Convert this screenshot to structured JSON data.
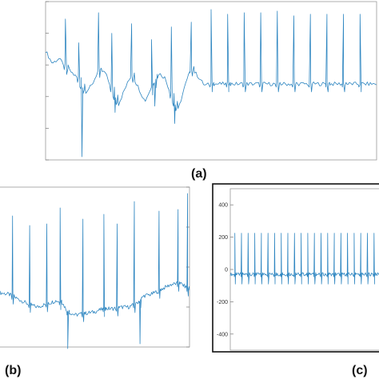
{
  "panel_labels": {
    "a": "(a)",
    "b": "(b)",
    "c": "(c)"
  },
  "colors": {
    "signal": "#2e86c1",
    "frame": "#999999",
    "panel_c_border": "#111111",
    "background": "#ffffff"
  },
  "chart_data": [
    {
      "type": "line",
      "panel": "(a)",
      "title": "",
      "xlabel": "",
      "ylabel": "",
      "x_range": [
        0,
        100
      ],
      "y_range": [
        -100,
        100
      ],
      "grid": false,
      "description_of_series": "ECG with motion artifacts in first half, regular QRS spikes in second half",
      "series": [
        {
          "baseline_points": [
            [
              0,
              38
            ],
            [
              2,
              22
            ],
            [
              4,
              28
            ],
            [
              6,
              18
            ],
            [
              8,
              10
            ],
            [
              10,
              2
            ],
            [
              12,
              -14
            ],
            [
              14,
              -6
            ],
            [
              16,
              14
            ],
            [
              18,
              10
            ],
            [
              20,
              -10
            ],
            [
              22,
              -30
            ],
            [
              24,
              -10
            ],
            [
              26,
              8
            ],
            [
              28,
              -8
            ],
            [
              30,
              -26
            ],
            [
              32,
              -8
            ],
            [
              34,
              10
            ],
            [
              36,
              4
            ],
            [
              38,
              -18
            ],
            [
              40,
              -38
            ],
            [
              42,
              -8
            ],
            [
              44,
              16
            ],
            [
              46,
              6
            ],
            [
              48,
              -6
            ],
            [
              50,
              -4
            ],
            [
              55,
              -4
            ],
            [
              60,
              -4
            ],
            [
              65,
              -4
            ],
            [
              70,
              -4
            ],
            [
              75,
              -4
            ],
            [
              80,
              -4
            ],
            [
              85,
              -4
            ],
            [
              90,
              -4
            ],
            [
              95,
              -4
            ],
            [
              100,
              -4
            ]
          ],
          "r_peaks": [
            [
              6,
              78
            ],
            [
              10,
              48
            ],
            [
              16,
              86
            ],
            [
              20,
              60
            ],
            [
              26,
              72
            ],
            [
              32,
              52
            ],
            [
              38,
              68
            ],
            [
              44,
              74
            ],
            [
              50,
              90
            ],
            [
              55,
              84
            ],
            [
              60,
              86
            ],
            [
              65,
              86
            ],
            [
              70,
              88
            ],
            [
              75,
              82
            ],
            [
              80,
              84
            ],
            [
              85,
              84
            ],
            [
              90,
              84
            ],
            [
              95,
              84
            ]
          ],
          "deep_dips": [
            [
              11,
              -96
            ],
            [
              21,
              -40
            ],
            [
              33,
              -32
            ],
            [
              39,
              -54
            ]
          ]
        }
      ]
    },
    {
      "type": "line",
      "panel": "(b)",
      "title": "",
      "xlabel": "",
      "ylabel": "",
      "x_range": [
        0,
        100
      ],
      "y_range": [
        -100,
        100
      ],
      "grid": false,
      "series": [
        {
          "baseline_points": [
            [
              0,
              -32
            ],
            [
              5,
              -34
            ],
            [
              10,
              -40
            ],
            [
              15,
              -46
            ],
            [
              20,
              -50
            ],
            [
              25,
              -46
            ],
            [
              30,
              -42
            ],
            [
              33,
              -44
            ],
            [
              36,
              -56
            ],
            [
              40,
              -60
            ],
            [
              45,
              -58
            ],
            [
              50,
              -56
            ],
            [
              55,
              -52
            ],
            [
              60,
              -52
            ],
            [
              65,
              -50
            ],
            [
              68,
              -50
            ],
            [
              72,
              -46
            ],
            [
              76,
              -36
            ],
            [
              80,
              -34
            ],
            [
              85,
              -28
            ],
            [
              90,
              -22
            ],
            [
              95,
              -20
            ],
            [
              100,
              -28
            ]
          ],
          "r_peaks": [
            [
              7,
              64
            ],
            [
              16,
              52
            ],
            [
              25,
              54
            ],
            [
              32,
              74
            ],
            [
              44,
              60
            ],
            [
              55,
              66
            ],
            [
              62,
              54
            ],
            [
              71,
              82
            ],
            [
              84,
              70
            ],
            [
              94,
              72
            ],
            [
              99,
              92
            ]
          ],
          "deep_dips": [
            [
              36,
              -102
            ],
            [
              74,
              -96
            ]
          ]
        }
      ]
    },
    {
      "type": "line",
      "panel": "(c)",
      "title": "",
      "xlabel": "",
      "ylabel": "",
      "x_range": [
        0,
        100
      ],
      "y_range": [
        -500,
        500
      ],
      "y_ticks": [
        400,
        200,
        0,
        -200,
        -400
      ],
      "y_tick_labels": [
        "400",
        "200",
        "0",
        "-200",
        "-400"
      ],
      "grid": false,
      "series": [
        {
          "baseline": -30,
          "r_peak_value": 225,
          "r_peak_count": 23,
          "first_peak_x": 3,
          "last_peak_x": 99
        }
      ]
    }
  ]
}
